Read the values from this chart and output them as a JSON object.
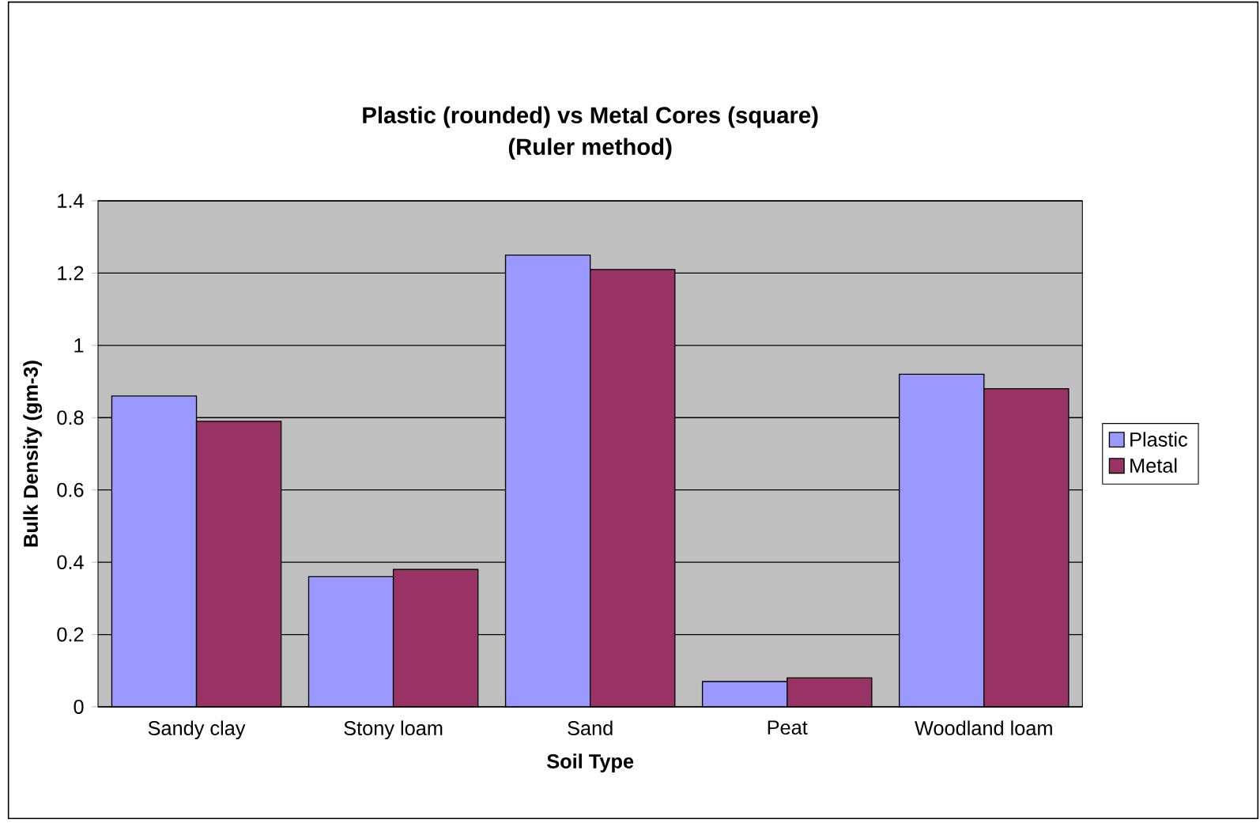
{
  "chart_data": {
    "type": "bar",
    "title": "Plastic (rounded) vs Metal Cores (square)",
    "subtitle": "(Ruler method)",
    "xlabel": "Soil Type",
    "ylabel": "Bulk Density (gm-3)",
    "categories": [
      "Sandy clay",
      "Stony loam",
      "Sand",
      "Peat",
      "Woodland loam"
    ],
    "series": [
      {
        "name": "Plastic",
        "color": "#9999ff",
        "values": [
          0.86,
          0.36,
          1.25,
          0.07,
          0.92
        ]
      },
      {
        "name": "Metal",
        "color": "#993366",
        "values": [
          0.79,
          0.38,
          1.21,
          0.08,
          0.88
        ]
      }
    ],
    "ylim": [
      0,
      1.4
    ],
    "yticks": [
      0,
      0.2,
      0.4,
      0.6,
      0.8,
      1,
      1.2,
      1.4
    ],
    "grid": "y",
    "legend": "right"
  }
}
